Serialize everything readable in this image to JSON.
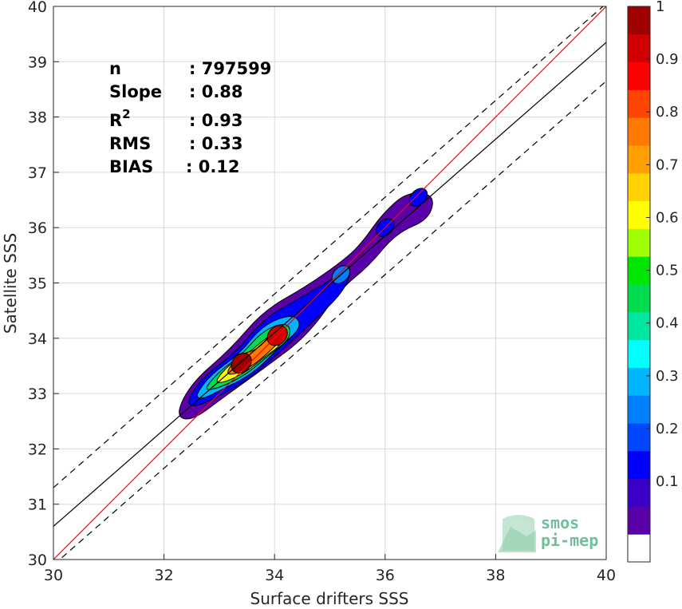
{
  "chart_data": {
    "type": "heatmap",
    "subtype": "density-contour-scatter",
    "xlabel": "Surface drifters SSS",
    "ylabel": "Satellite SSS",
    "xlim": [
      30,
      40
    ],
    "ylim": [
      30,
      40
    ],
    "xticks": [
      "30",
      "32",
      "34",
      "36",
      "38",
      "40"
    ],
    "yticks": [
      "30",
      "31",
      "32",
      "33",
      "34",
      "35",
      "36",
      "37",
      "38",
      "39",
      "40"
    ],
    "grid": true,
    "stats": [
      {
        "label": "n",
        "value": ": 797599"
      },
      {
        "label": "Slope",
        "value": ": 0.88"
      },
      {
        "label": "R",
        "sup": "2",
        "value": ": 0.93"
      },
      {
        "label": "RMS",
        "value": ": 0.33"
      },
      {
        "label": "BIAS",
        "value": ": 0.12"
      }
    ],
    "lines": {
      "identity": {
        "x": [
          30,
          40
        ],
        "y": [
          30,
          40
        ],
        "color": "#ff0000"
      },
      "regression": {
        "x": [
          30,
          40
        ],
        "y": [
          30.6,
          39.35
        ],
        "color": "#000000"
      },
      "upper_bound": {
        "x": [
          30,
          40
        ],
        "y": [
          31.3,
          40.05
        ],
        "color": "#000000",
        "style": "dashed"
      },
      "lower_bound": {
        "x": [
          30,
          40
        ],
        "y": [
          29.9,
          38.65
        ],
        "color": "#000000",
        "style": "dashed"
      }
    },
    "density_peaks": [
      {
        "x": 33.4,
        "y": 33.55,
        "value": 1.0
      },
      {
        "x": 34.05,
        "y": 34.05,
        "value": 0.95
      }
    ],
    "colorbar": {
      "range": [
        0,
        1
      ],
      "ticks": [
        "0.1",
        "0.2",
        "0.3",
        "0.4",
        "0.5",
        "0.6",
        "0.7",
        "0.8",
        "0.9",
        "1"
      ],
      "colors": [
        "#ffffff",
        "#5a00a8",
        "#3a00c8",
        "#0000ff",
        "#0048ff",
        "#0080ff",
        "#00b4ff",
        "#00ffff",
        "#00e6a0",
        "#00dc50",
        "#00e600",
        "#a0ff00",
        "#ffff00",
        "#ffd200",
        "#ffa000",
        "#ff7800",
        "#ff4600",
        "#ff0000",
        "#d20000",
        "#a00000"
      ]
    }
  },
  "logo": {
    "line1": "smos",
    "line2": "pi-mep"
  }
}
